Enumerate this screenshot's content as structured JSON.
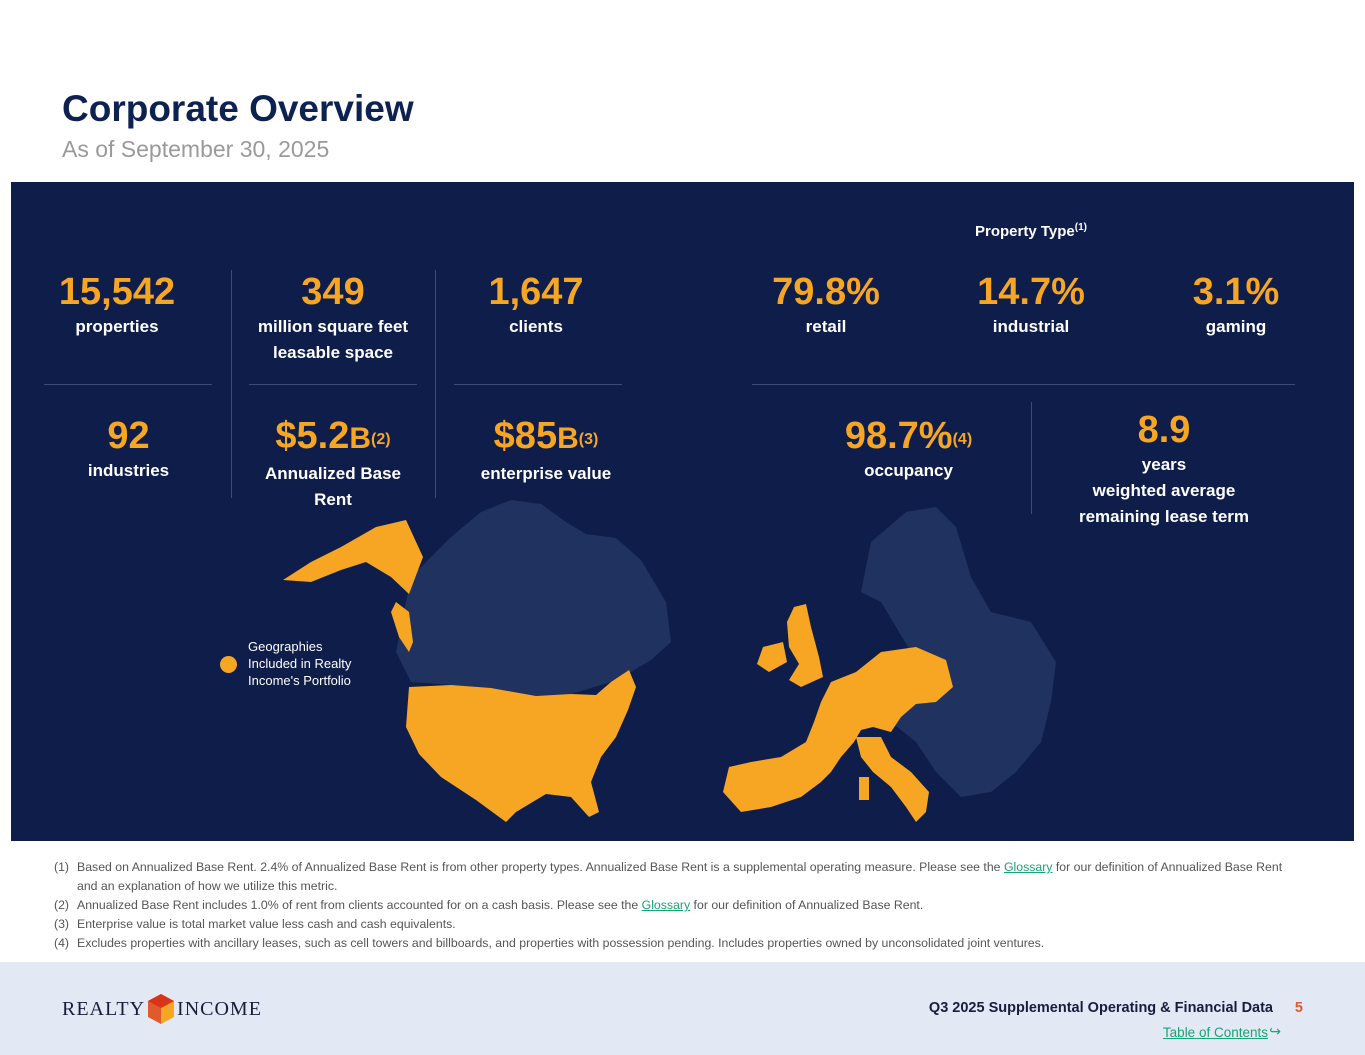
{
  "header": {
    "title": "Corporate Overview",
    "subtitle": "As of September 30, 2025"
  },
  "stats": {
    "properties": {
      "value": "15,542",
      "label": "properties"
    },
    "square_feet": {
      "value": "349",
      "label1": "million square feet",
      "label2": "leasable space"
    },
    "clients": {
      "value": "1,647",
      "label": "clients"
    },
    "industries": {
      "value": "92",
      "label": "industries"
    },
    "abr": {
      "value": "$5.2",
      "unit": "B",
      "note": "(2)",
      "label1": "Annualized Base",
      "label2": "Rent"
    },
    "ev": {
      "value": "$85",
      "unit": "B",
      "note": "(3)",
      "label": "enterprise value"
    },
    "occupancy": {
      "value": "98.7%",
      "note": "(4)",
      "label": "occupancy"
    },
    "lease_term": {
      "value": "8.9",
      "label1": "years",
      "label2": "weighted average",
      "label3": "remaining lease term"
    }
  },
  "property_type": {
    "title": "Property Type",
    "note": "(1)",
    "items": [
      {
        "value": "79.8%",
        "label": "retail"
      },
      {
        "value": "14.7%",
        "label": "industrial"
      },
      {
        "value": "3.1%",
        "label": "gaming"
      }
    ]
  },
  "legend": {
    "label": "Geographies Included in Realty Income's Portfolio"
  },
  "footnotes": [
    {
      "num": "(1)",
      "pre": "Based on Annualized Base Rent. 2.4% of Annualized Base Rent is from other property types. Annualized Base Rent is a supplemental operating measure. Please see the ",
      "link": "Glossary",
      "post": " for our definition of Annualized Base Rent and an explanation of how we utilize this metric."
    },
    {
      "num": "(2)",
      "pre": "Annualized Base Rent includes 1.0% of rent from clients accounted for on a cash basis. Please see the ",
      "link": "Glossary",
      "post": " for our definition of Annualized Base Rent."
    },
    {
      "num": "(3)",
      "text": "Enterprise value is total market value less cash and cash equivalents."
    },
    {
      "num": "(4)",
      "text": "Excludes properties with ancillary leases, such as cell towers and billboards, and properties with possession pending. Includes properties owned by unconsolidated joint ventures."
    }
  ],
  "footer": {
    "logo_left": "REALTY",
    "logo_right": "INCOME",
    "title": "Q3 2025 Supplemental Operating & Financial Data",
    "page": "5",
    "toc": "Table of Contents",
    "toc_arrow": "↪"
  },
  "colors": {
    "navy": "#0e1d4a",
    "orange": "#f6a623",
    "green_link": "#17a673",
    "page_number": "#e05a2b"
  }
}
